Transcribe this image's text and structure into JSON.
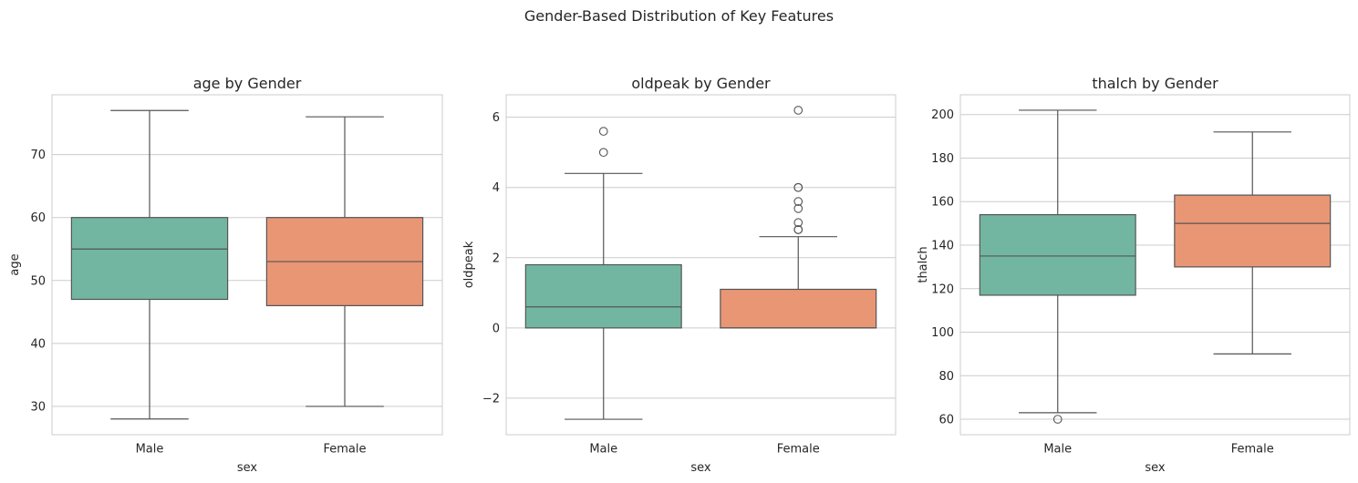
{
  "figure": {
    "suptitle": "Gender-Based Distribution of Key Features"
  },
  "chart_data": [
    {
      "type": "box",
      "title": "age by Gender",
      "xlabel": "sex",
      "ylabel": "age",
      "categories": [
        "Male",
        "Female"
      ],
      "ylim": [
        25.5,
        79.5
      ],
      "yticks": [
        30,
        40,
        50,
        60,
        70
      ],
      "grid": true,
      "boxes": [
        {
          "category": "Male",
          "whisker_low": 28,
          "q1": 47,
          "median": 55,
          "q3": 60,
          "whisker_high": 77,
          "outliers": [],
          "color": "#72b6a1"
        },
        {
          "category": "Female",
          "whisker_low": 30,
          "q1": 46,
          "median": 53,
          "q3": 60,
          "whisker_high": 76,
          "outliers": [],
          "color": "#e99675"
        }
      ]
    },
    {
      "type": "box",
      "title": "oldpeak by Gender",
      "xlabel": "sex",
      "ylabel": "oldpeak",
      "categories": [
        "Male",
        "Female"
      ],
      "ylim": [
        -3.04,
        6.64
      ],
      "yticks": [
        -2,
        0,
        2,
        4,
        6
      ],
      "grid": true,
      "boxes": [
        {
          "category": "Male",
          "whisker_low": -2.6,
          "q1": 0,
          "median": 0.6,
          "q3": 1.8,
          "whisker_high": 4.4,
          "outliers": [
            5.0,
            5.6
          ],
          "color": "#72b6a1"
        },
        {
          "category": "Female",
          "whisker_low": 0,
          "q1": 0,
          "median": 0,
          "q3": 1.1,
          "whisker_high": 2.6,
          "outliers": [
            2.8,
            2.8,
            3.0,
            3.4,
            3.6,
            4.0,
            4.0,
            6.2
          ],
          "color": "#e99675"
        }
      ]
    },
    {
      "type": "box",
      "title": "thalch by Gender",
      "xlabel": "sex",
      "ylabel": "thalch",
      "categories": [
        "Male",
        "Female"
      ],
      "ylim": [
        52.9,
        209.1
      ],
      "yticks": [
        60,
        80,
        100,
        120,
        140,
        160,
        180,
        200
      ],
      "grid": true,
      "boxes": [
        {
          "category": "Male",
          "whisker_low": 63,
          "q1": 117,
          "median": 135,
          "q3": 154,
          "whisker_high": 202,
          "outliers": [
            60
          ],
          "color": "#72b6a1"
        },
        {
          "category": "Female",
          "whisker_low": 90,
          "q1": 130,
          "median": 150,
          "q3": 163,
          "whisker_high": 192,
          "outliers": [],
          "color": "#e99675"
        }
      ]
    }
  ]
}
